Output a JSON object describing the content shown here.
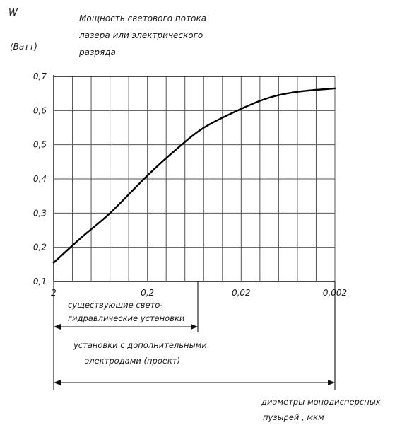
{
  "chart_data": {
    "type": "line",
    "title_lines": [
      "Мощность светового потока",
      "лазера или электрического",
      "разряда"
    ],
    "ylabel": "W",
    "yunit": "(Ватт)",
    "xlabel_lines": [
      "диаметры монодисперсных",
      "пузырей , мкм"
    ],
    "x_ticks": [
      "2",
      "0,2",
      "0,02",
      "0,002"
    ],
    "y_ticks": [
      "0,1",
      "0,2",
      "0,3",
      "0,4",
      "0,5",
      "0,6",
      "0,7"
    ],
    "ylim": [
      0.1,
      0.7
    ],
    "xlim": [
      2,
      0.002
    ],
    "x_scale": "log",
    "grid": true,
    "series": [
      {
        "values": [
          {
            "x": 2,
            "y": 0.155
          },
          {
            "x": 1.0,
            "y": 0.23
          },
          {
            "x": 0.5,
            "y": 0.3
          },
          {
            "x": 0.2,
            "y": 0.41
          },
          {
            "x": 0.1,
            "y": 0.485
          },
          {
            "x": 0.05,
            "y": 0.55
          },
          {
            "x": 0.02,
            "y": 0.605
          },
          {
            "x": 0.01,
            "y": 0.638
          },
          {
            "x": 0.005,
            "y": 0.655
          },
          {
            "x": 0.002,
            "y": 0.665
          }
        ]
      }
    ],
    "annotations": {
      "existing_lines": [
        "существующие свето-",
        "гидравлические установки"
      ],
      "project_lines": [
        "установки с дополнительными",
        "электродами  (проект)"
      ]
    }
  }
}
